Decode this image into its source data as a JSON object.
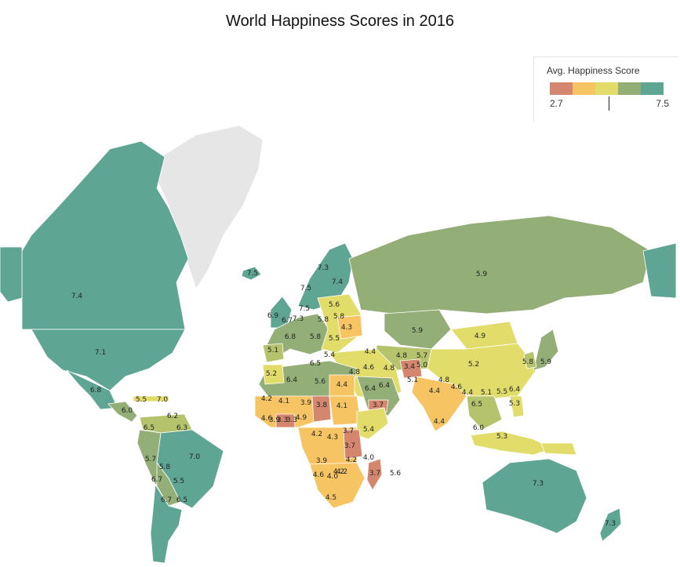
{
  "title": "World Happiness Scores in 2016",
  "legend": {
    "title": "Avg. Happiness Score",
    "min_label": "2.7",
    "max_label": "7.5",
    "colors": [
      "#d4876e",
      "#f6c462",
      "#e2dd6a",
      "#93ae76",
      "#5ea593"
    ]
  },
  "colors": {
    "c27": "#d4876e",
    "c40": "#f2bf62",
    "c45": "#f6c462",
    "c50": "#e2dd6a",
    "c55": "#b6c36d",
    "c60": "#93ae76",
    "c70": "#5ea593",
    "nodata": "#e6e6e6"
  },
  "map_labels": [
    {
      "name": "canada",
      "value": "7.4"
    },
    {
      "name": "usa",
      "value": "7.1"
    },
    {
      "name": "mexico",
      "value": "6.8"
    },
    {
      "name": "guatemala",
      "value": "5.5"
    },
    {
      "name": "costa-rica",
      "value": "7.0"
    },
    {
      "name": "venezuela",
      "value": "6.2"
    },
    {
      "name": "panama",
      "value": "6.0"
    },
    {
      "name": "colombia",
      "value": "6.5"
    },
    {
      "name": "suriname",
      "value": "6.3"
    },
    {
      "name": "brazil",
      "value": "7.0"
    },
    {
      "name": "ecuador",
      "value": "5.7"
    },
    {
      "name": "bolivia",
      "value": "5.8"
    },
    {
      "name": "peru",
      "value": "6.7"
    },
    {
      "name": "paraguay",
      "value": "5.5"
    },
    {
      "name": "chile",
      "value": "6.7"
    },
    {
      "name": "uruguay",
      "value": "6.5"
    },
    {
      "name": "iceland",
      "value": "7.5"
    },
    {
      "name": "norway",
      "value": "7.3"
    },
    {
      "name": "finland",
      "value": "7.4"
    },
    {
      "name": "sweden",
      "value": "7.5"
    },
    {
      "name": "ireland",
      "value": "6.9"
    },
    {
      "name": "uk",
      "value": "6.7"
    },
    {
      "name": "netherlands",
      "value": "7.3"
    },
    {
      "name": "denmark",
      "value": "7.5"
    },
    {
      "name": "latvia",
      "value": "5.6"
    },
    {
      "name": "poland",
      "value": "5.8"
    },
    {
      "name": "czechia",
      "value": "5.8"
    },
    {
      "name": "ukraine",
      "value": "4.3"
    },
    {
      "name": "france",
      "value": "6.8"
    },
    {
      "name": "austria",
      "value": "5.8"
    },
    {
      "name": "serbia",
      "value": "5.5"
    },
    {
      "name": "portugal",
      "value": "5.1"
    },
    {
      "name": "italy",
      "value": "6.5"
    },
    {
      "name": "greece",
      "value": "5.4"
    },
    {
      "name": "turkey",
      "value": "4.4"
    },
    {
      "name": "syria",
      "value": "4.8"
    },
    {
      "name": "lebanon",
      "value": "4.6"
    },
    {
      "name": "iraq",
      "value": "4.8"
    },
    {
      "name": "iran",
      "value": "4.8"
    },
    {
      "name": "afghanistan",
      "value": "3.4"
    },
    {
      "name": "turkmenistan",
      "value": "5.7"
    },
    {
      "name": "uzbekistan",
      "value": "5.0"
    },
    {
      "name": "pakistan",
      "value": "5.1"
    },
    {
      "name": "kazakhstan",
      "value": "5.9"
    },
    {
      "name": "russia",
      "value": "5.9"
    },
    {
      "name": "mongolia",
      "value": "4.9"
    },
    {
      "name": "china",
      "value": "5.2"
    },
    {
      "name": "nepal",
      "value": "4.8"
    },
    {
      "name": "india",
      "value": "4.4"
    },
    {
      "name": "sri-lanka",
      "value": "4.4"
    },
    {
      "name": "bangladesh",
      "value": "4.6"
    },
    {
      "name": "myanmar",
      "value": "4.4"
    },
    {
      "name": "thailand",
      "value": "6.5"
    },
    {
      "name": "vietnam",
      "value": "5.1"
    },
    {
      "name": "hong-kong",
      "value": "5.5"
    },
    {
      "name": "taiwan",
      "value": "6.4"
    },
    {
      "name": "philippines",
      "value": "5.3"
    },
    {
      "name": "south-korea",
      "value": "5.8"
    },
    {
      "name": "japan",
      "value": "5.9"
    },
    {
      "name": "malaysia",
      "value": "6.0"
    },
    {
      "name": "indonesia",
      "value": "5.3"
    },
    {
      "name": "australia",
      "value": "7.3"
    },
    {
      "name": "new-zealand",
      "value": "7.3"
    },
    {
      "name": "morocco",
      "value": "5.2"
    },
    {
      "name": "algeria",
      "value": "6.4"
    },
    {
      "name": "libya",
      "value": "5.6"
    },
    {
      "name": "egypt",
      "value": "4.4"
    },
    {
      "name": "saudi-arabia",
      "value": "6.4"
    },
    {
      "name": "uae",
      "value": "6.4"
    },
    {
      "name": "yemen",
      "value": "3.7"
    },
    {
      "name": "mauritania",
      "value": "4.2"
    },
    {
      "name": "mali",
      "value": "4.1"
    },
    {
      "name": "niger",
      "value": "3.9"
    },
    {
      "name": "chad",
      "value": "3.8"
    },
    {
      "name": "sudan",
      "value": "4.1"
    },
    {
      "name": "senegal",
      "value": "4.6"
    },
    {
      "name": "guinea",
      "value": "3.9"
    },
    {
      "name": "ghana",
      "value": "3.3"
    },
    {
      "name": "togo",
      "value": "3.3"
    },
    {
      "name": "nigeria",
      "value": "4.9"
    },
    {
      "name": "ethiopia",
      "value": "5.4"
    },
    {
      "name": "gabon",
      "value": "4.2"
    },
    {
      "name": "congo-dr",
      "value": "4.3"
    },
    {
      "name": "rwanda",
      "value": "3.7"
    },
    {
      "name": "tanzania",
      "value": "3.7"
    },
    {
      "name": "kenya",
      "value": "4.0"
    },
    {
      "name": "angola",
      "value": "3.9"
    },
    {
      "name": "zambia",
      "value": "4.2"
    },
    {
      "name": "zimbabwe",
      "value": "4.2"
    },
    {
      "name": "namibia",
      "value": "4.6"
    },
    {
      "name": "botswana",
      "value": "4.0"
    },
    {
      "name": "mozambique",
      "value": "4.2"
    },
    {
      "name": "madagascar",
      "value": "3.7"
    },
    {
      "name": "mauritius",
      "value": "5.6"
    },
    {
      "name": "south-africa",
      "value": "4.5"
    }
  ]
}
